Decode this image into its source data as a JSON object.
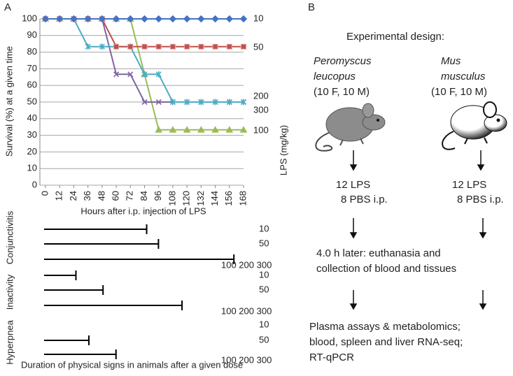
{
  "panel_labels": [
    "A",
    "B"
  ],
  "chart_data": [
    {
      "type": "line",
      "x_label": "Hours after i.p. injection of LPS",
      "y_label": "Survival (%) at a given time",
      "legend_title": "LPS (mg/kg)",
      "x": [
        0,
        12,
        24,
        36,
        48,
        60,
        72,
        84,
        96,
        108,
        120,
        132,
        144,
        156,
        168
      ],
      "xlim": [
        0,
        168
      ],
      "xticks": [
        0,
        12,
        24,
        36,
        48,
        60,
        72,
        84,
        96,
        108,
        120,
        132,
        144,
        156,
        168
      ],
      "ylim": [
        0,
        100
      ],
      "yticks": [
        0,
        10,
        20,
        30,
        40,
        50,
        60,
        70,
        80,
        90,
        100
      ],
      "grid": true,
      "series": [
        {
          "name": "10",
          "color": "#4472c4",
          "marker": "diamond",
          "values": [
            100,
            100,
            100,
            100,
            100,
            100,
            100,
            100,
            100,
            100,
            100,
            100,
            100,
            100,
            100
          ]
        },
        {
          "name": "50",
          "color": "#c0504d",
          "marker": "square",
          "values": [
            100,
            100,
            100,
            100,
            100,
            83.3,
            83.3,
            83.3,
            83.3,
            83.3,
            83.3,
            83.3,
            83.3,
            83.3,
            83.3
          ]
        },
        {
          "name": "200",
          "color": "#4bacc6",
          "marker": "star",
          "values": [
            100,
            100,
            100,
            83.3,
            83.3,
            83.3,
            83.3,
            66.7,
            66.7,
            50,
            50,
            50,
            50,
            50,
            50
          ]
        },
        {
          "name": "300",
          "color": "#8064a2",
          "marker": "x",
          "values": [
            100,
            100,
            100,
            100,
            100,
            66.7,
            66.7,
            50,
            50,
            50,
            50,
            50,
            50,
            50,
            50
          ]
        },
        {
          "name": "100",
          "color": "#9bbb59",
          "marker": "triangle",
          "values": [
            100,
            100,
            100,
            100,
            100,
            100,
            100,
            66.7,
            33.3,
            33.3,
            33.3,
            33.3,
            33.3,
            33.3,
            33.3
          ]
        }
      ]
    },
    {
      "type": "bar",
      "orientation": "horizontal",
      "caption": "Duration of physical signs in animals after a given dose",
      "xlim": [
        0,
        168
      ],
      "color": "#000000",
      "groups": [
        {
          "name": "Conjunctivitis",
          "categories": [
            "10",
            "50",
            "100 200 300"
          ],
          "values": [
            87,
            97,
            161
          ]
        },
        {
          "name": "Inactivity",
          "categories": [
            "10",
            "50",
            "100 200 300"
          ],
          "values": [
            27,
            50,
            117
          ]
        },
        {
          "name": "Hyperpnea",
          "categories": [
            "10",
            "50",
            "100 200 300"
          ],
          "values": [
            null,
            38,
            61
          ]
        }
      ]
    }
  ],
  "diagram": {
    "title": "Experimental design:",
    "species": [
      {
        "genus": "Peromyscus",
        "epithet": "leucopus",
        "group": "(10 F, 10 M)",
        "treatment": [
          "12 LPS",
          "8 PBS i.p."
        ]
      },
      {
        "genus": "Mus",
        "epithet": "musculus",
        "group": "(10 F, 10 M)",
        "treatment": [
          "12 LPS",
          "8 PBS i.p."
        ]
      }
    ],
    "step": [
      "4.0 h later: euthanasia and",
      "collection of blood and tissues"
    ],
    "outputs": [
      "Plasma assays & metabolomics;",
      "blood, spleen and liver RNA-seq;",
      "RT-qPCR"
    ]
  }
}
